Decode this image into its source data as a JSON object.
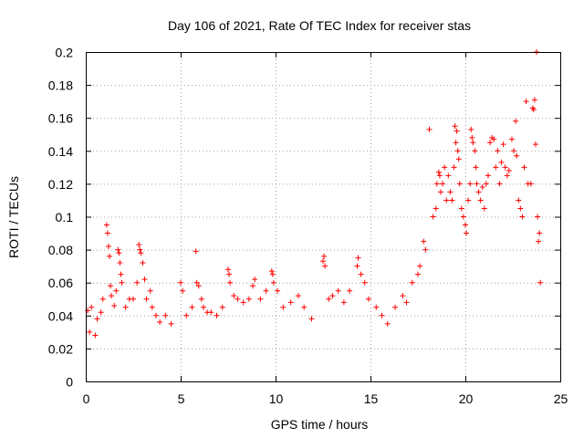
{
  "chart_data": {
    "type": "scatter",
    "title": "Day 106 of 2021, Rate Of TEC Index for receiver stas",
    "xlabel": "GPS time / hours",
    "ylabel": "ROTI / TECUs",
    "xlim": [
      0,
      25
    ],
    "ylim": [
      0,
      0.2
    ],
    "x_ticks": [
      "0",
      "5",
      "10",
      "15",
      "20",
      "25"
    ],
    "y_ticks": [
      "0",
      "0.02",
      "0.04",
      "0.06",
      "0.08",
      "0.1",
      "0.12",
      "0.14",
      "0.16",
      "0.18",
      "0.2"
    ],
    "grid": true,
    "marker": "plus",
    "color": "#ff0000",
    "series": [
      {
        "points": [
          [
            0.1,
            0.043
          ],
          [
            0.2,
            0.03
          ],
          [
            0.3,
            0.045
          ],
          [
            0.5,
            0.028
          ],
          [
            0.6,
            0.038
          ],
          [
            0.8,
            0.042
          ],
          [
            0.9,
            0.05
          ],
          [
            1.1,
            0.095
          ],
          [
            1.15,
            0.09
          ],
          [
            1.2,
            0.082
          ],
          [
            1.25,
            0.076
          ],
          [
            1.3,
            0.058
          ],
          [
            1.35,
            0.052
          ],
          [
            1.5,
            0.046
          ],
          [
            1.6,
            0.055
          ],
          [
            1.7,
            0.08
          ],
          [
            1.75,
            0.078
          ],
          [
            1.8,
            0.072
          ],
          [
            1.85,
            0.065
          ],
          [
            1.9,
            0.06
          ],
          [
            2.1,
            0.045
          ],
          [
            2.3,
            0.05
          ],
          [
            2.5,
            0.05
          ],
          [
            2.7,
            0.06
          ],
          [
            2.8,
            0.083
          ],
          [
            2.85,
            0.08
          ],
          [
            2.9,
            0.078
          ],
          [
            3.0,
            0.072
          ],
          [
            3.1,
            0.062
          ],
          [
            3.2,
            0.05
          ],
          [
            3.4,
            0.055
          ],
          [
            3.5,
            0.045
          ],
          [
            3.7,
            0.04
          ],
          [
            3.9,
            0.036
          ],
          [
            4.2,
            0.04
          ],
          [
            4.5,
            0.035
          ],
          [
            5.0,
            0.06
          ],
          [
            5.1,
            0.055
          ],
          [
            5.3,
            0.04
          ],
          [
            5.6,
            0.045
          ],
          [
            5.8,
            0.079
          ],
          [
            5.85,
            0.06
          ],
          [
            5.95,
            0.058
          ],
          [
            6.1,
            0.05
          ],
          [
            6.2,
            0.045
          ],
          [
            6.4,
            0.042
          ],
          [
            6.6,
            0.042
          ],
          [
            6.9,
            0.04
          ],
          [
            7.2,
            0.045
          ],
          [
            7.5,
            0.068
          ],
          [
            7.55,
            0.065
          ],
          [
            7.6,
            0.06
          ],
          [
            7.8,
            0.052
          ],
          [
            8.0,
            0.05
          ],
          [
            8.3,
            0.048
          ],
          [
            8.6,
            0.05
          ],
          [
            8.8,
            0.058
          ],
          [
            8.9,
            0.062
          ],
          [
            9.2,
            0.05
          ],
          [
            9.5,
            0.055
          ],
          [
            9.8,
            0.067
          ],
          [
            9.85,
            0.065
          ],
          [
            9.9,
            0.06
          ],
          [
            10.1,
            0.055
          ],
          [
            10.4,
            0.045
          ],
          [
            10.8,
            0.048
          ],
          [
            11.2,
            0.052
          ],
          [
            11.5,
            0.045
          ],
          [
            11.9,
            0.038
          ],
          [
            12.5,
            0.073
          ],
          [
            12.55,
            0.076
          ],
          [
            12.6,
            0.07
          ],
          [
            12.8,
            0.05
          ],
          [
            13.0,
            0.052
          ],
          [
            13.3,
            0.055
          ],
          [
            13.6,
            0.048
          ],
          [
            13.9,
            0.055
          ],
          [
            14.3,
            0.07
          ],
          [
            14.35,
            0.075
          ],
          [
            14.5,
            0.065
          ],
          [
            14.7,
            0.06
          ],
          [
            14.9,
            0.05
          ],
          [
            15.3,
            0.045
          ],
          [
            15.6,
            0.04
          ],
          [
            15.9,
            0.035
          ],
          [
            16.3,
            0.045
          ],
          [
            16.7,
            0.052
          ],
          [
            16.9,
            0.048
          ],
          [
            17.2,
            0.06
          ],
          [
            17.5,
            0.065
          ],
          [
            17.6,
            0.07
          ],
          [
            17.8,
            0.085
          ],
          [
            17.9,
            0.08
          ],
          [
            18.1,
            0.153
          ],
          [
            18.3,
            0.1
          ],
          [
            18.45,
            0.105
          ],
          [
            18.5,
            0.12
          ],
          [
            18.6,
            0.127
          ],
          [
            18.65,
            0.125
          ],
          [
            18.7,
            0.115
          ],
          [
            18.8,
            0.12
          ],
          [
            18.9,
            0.13
          ],
          [
            19.0,
            0.11
          ],
          [
            19.1,
            0.125
          ],
          [
            19.2,
            0.115
          ],
          [
            19.3,
            0.11
          ],
          [
            19.4,
            0.13
          ],
          [
            19.45,
            0.155
          ],
          [
            19.5,
            0.145
          ],
          [
            19.55,
            0.152
          ],
          [
            19.6,
            0.14
          ],
          [
            19.65,
            0.135
          ],
          [
            19.7,
            0.12
          ],
          [
            19.8,
            0.105
          ],
          [
            19.9,
            0.1
          ],
          [
            20.0,
            0.095
          ],
          [
            20.05,
            0.09
          ],
          [
            20.15,
            0.11
          ],
          [
            20.25,
            0.12
          ],
          [
            20.3,
            0.153
          ],
          [
            20.35,
            0.148
          ],
          [
            20.4,
            0.145
          ],
          [
            20.5,
            0.14
          ],
          [
            20.55,
            0.13
          ],
          [
            20.6,
            0.12
          ],
          [
            20.7,
            0.115
          ],
          [
            20.8,
            0.11
          ],
          [
            20.9,
            0.118
          ],
          [
            21.0,
            0.105
          ],
          [
            21.1,
            0.12
          ],
          [
            21.2,
            0.125
          ],
          [
            21.3,
            0.145
          ],
          [
            21.4,
            0.148
          ],
          [
            21.5,
            0.147
          ],
          [
            21.6,
            0.13
          ],
          [
            21.7,
            0.14
          ],
          [
            21.8,
            0.12
          ],
          [
            21.9,
            0.133
          ],
          [
            22.0,
            0.144
          ],
          [
            22.1,
            0.13
          ],
          [
            22.2,
            0.125
          ],
          [
            22.3,
            0.128
          ],
          [
            22.45,
            0.147
          ],
          [
            22.55,
            0.14
          ],
          [
            22.65,
            0.158
          ],
          [
            22.7,
            0.137
          ],
          [
            22.8,
            0.11
          ],
          [
            22.9,
            0.105
          ],
          [
            23.0,
            0.1
          ],
          [
            23.1,
            0.13
          ],
          [
            23.2,
            0.17
          ],
          [
            23.3,
            0.12
          ],
          [
            23.45,
            0.12
          ],
          [
            23.55,
            0.166
          ],
          [
            23.6,
            0.165
          ],
          [
            23.65,
            0.171
          ],
          [
            23.7,
            0.144
          ],
          [
            23.75,
            0.2
          ],
          [
            23.8,
            0.1
          ],
          [
            23.85,
            0.085
          ],
          [
            23.9,
            0.09
          ],
          [
            23.95,
            0.06
          ]
        ]
      }
    ]
  }
}
